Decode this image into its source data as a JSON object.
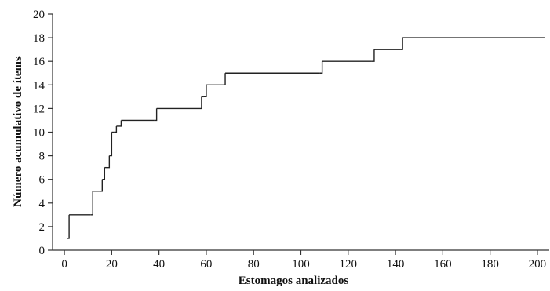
{
  "chart_data": {
    "type": "line",
    "line_style": "step",
    "title": "",
    "xlabel": "Estomagos analizados",
    "ylabel": "Número acumulativo de ítems",
    "xlim": [
      -5,
      205
    ],
    "ylim": [
      0,
      20
    ],
    "x_ticks": [
      0,
      20,
      40,
      60,
      80,
      100,
      120,
      140,
      160,
      180,
      200
    ],
    "y_ticks": [
      0,
      2,
      4,
      6,
      8,
      10,
      12,
      14,
      16,
      18,
      20
    ],
    "grid": false,
    "legend": "none",
    "line_color": "#222222",
    "series": [
      {
        "x": [
          1,
          2,
          11,
          12,
          15,
          16,
          17,
          18,
          19,
          20,
          21,
          22,
          24,
          38,
          39,
          57,
          58,
          59,
          60,
          66,
          68,
          108,
          109,
          130,
          131,
          142,
          143,
          203
        ],
        "y": [
          1,
          3,
          3,
          5,
          5,
          6,
          7,
          7,
          8,
          10,
          10,
          10.5,
          11,
          11,
          12,
          12,
          13,
          13,
          14,
          14,
          15,
          15,
          16,
          16,
          17,
          17,
          18,
          18
        ]
      }
    ]
  }
}
